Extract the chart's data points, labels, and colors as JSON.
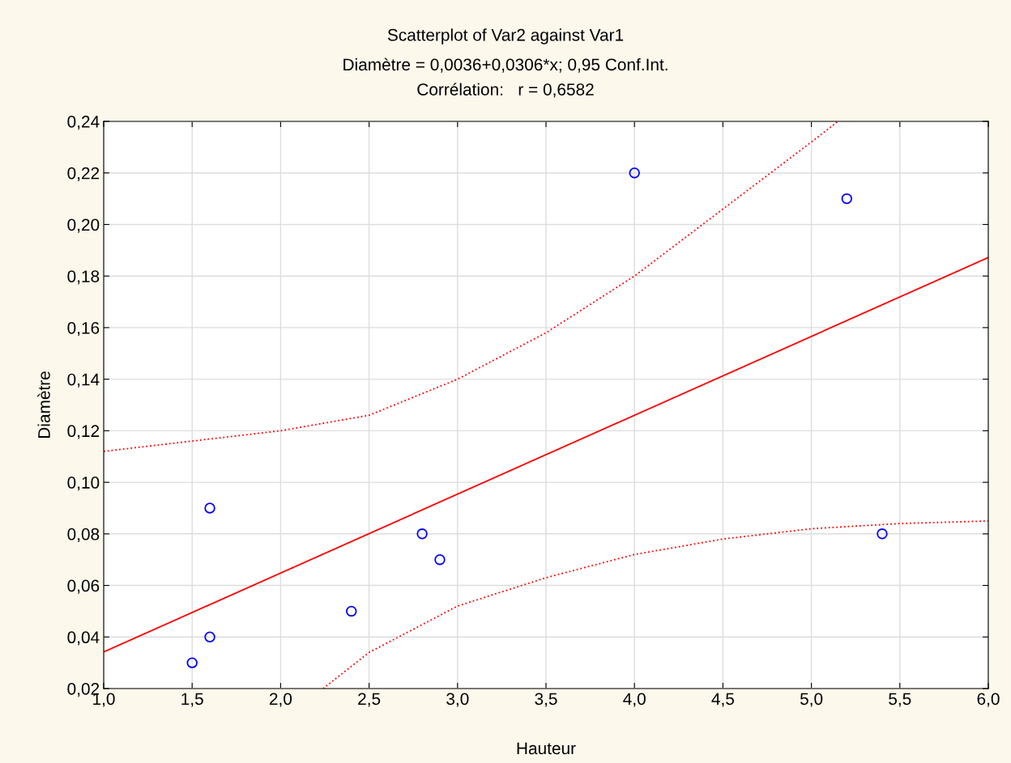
{
  "chart_data": {
    "type": "scatter",
    "title": "Scatterplot of Var2 against Var1",
    "subtitle": "Diamètre = 0,0036+0,0306*x; 0,95 Conf.Int.\nCorrélation:   r = 0,6582",
    "xlabel": "Hauteur",
    "ylabel": "Diamètre",
    "xlim": [
      1.0,
      6.0
    ],
    "ylim": [
      0.02,
      0.24
    ],
    "xticks": [
      {
        "value": 1.0,
        "label": "1,0"
      },
      {
        "value": 1.5,
        "label": "1,5"
      },
      {
        "value": 2.0,
        "label": "2,0"
      },
      {
        "value": 2.5,
        "label": "2,5"
      },
      {
        "value": 3.0,
        "label": "3,0"
      },
      {
        "value": 3.5,
        "label": "3,5"
      },
      {
        "value": 4.0,
        "label": "4,0"
      },
      {
        "value": 4.5,
        "label": "4,5"
      },
      {
        "value": 5.0,
        "label": "5,0"
      },
      {
        "value": 5.5,
        "label": "5,5"
      },
      {
        "value": 6.0,
        "label": "6,0"
      }
    ],
    "yticks": [
      {
        "value": 0.02,
        "label": "0,02"
      },
      {
        "value": 0.04,
        "label": "0,04"
      },
      {
        "value": 0.06,
        "label": "0,06"
      },
      {
        "value": 0.08,
        "label": "0,08"
      },
      {
        "value": 0.1,
        "label": "0,10"
      },
      {
        "value": 0.12,
        "label": "0,12"
      },
      {
        "value": 0.14,
        "label": "0,14"
      },
      {
        "value": 0.16,
        "label": "0,16"
      },
      {
        "value": 0.18,
        "label": "0,18"
      },
      {
        "value": 0.2,
        "label": "0,20"
      },
      {
        "value": 0.22,
        "label": "0,22"
      },
      {
        "value": 0.24,
        "label": "0,24"
      }
    ],
    "grid": true,
    "series": [
      {
        "color": "#0000ff",
        "marker": "circle",
        "x": [
          1.5,
          1.6,
          1.6,
          2.4,
          2.8,
          2.9,
          4.0,
          5.2,
          5.4
        ],
        "values": [
          0.03,
          0.04,
          0.09,
          0.05,
          0.08,
          0.07,
          0.22,
          0.21,
          0.08
        ]
      },
      {
        "type": "line",
        "color": "#ff0000",
        "line_style": "solid",
        "x": [
          1.0,
          6.0
        ],
        "values": [
          0.0342,
          0.1872
        ]
      },
      {
        "type": "line",
        "color": "#ff0000",
        "line_style": "dotted",
        "x": [
          1.0,
          1.5,
          2.0,
          2.5,
          3.0,
          3.5,
          4.0,
          4.5,
          5.0,
          5.15
        ],
        "values": [
          0.112,
          0.116,
          0.12,
          0.126,
          0.14,
          0.158,
          0.18,
          0.206,
          0.232,
          0.24
        ]
      },
      {
        "type": "line",
        "color": "#ff0000",
        "line_style": "dotted",
        "x": [
          2.24,
          2.5,
          3.0,
          3.5,
          4.0,
          4.5,
          5.0,
          5.5,
          6.0
        ],
        "values": [
          0.02,
          0.034,
          0.052,
          0.063,
          0.072,
          0.078,
          0.082,
          0.084,
          0.085
        ]
      }
    ]
  }
}
